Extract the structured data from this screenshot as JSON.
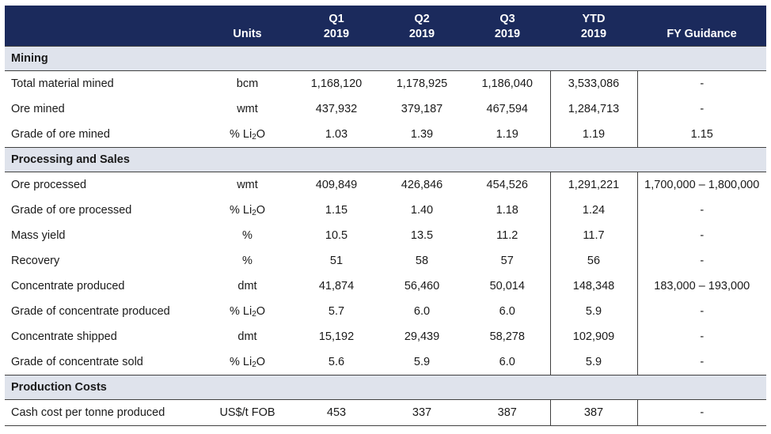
{
  "header": {
    "units": "Units",
    "q1_line1": "Q1",
    "q1_line2": "2019",
    "q2_line1": "Q2",
    "q2_line2": "2019",
    "q3_line1": "Q3",
    "q3_line2": "2019",
    "ytd_line1": "YTD",
    "ytd_line2": "2019",
    "guidance": "FY Guidance"
  },
  "sections": {
    "mining": "Mining",
    "processing": "Processing and Sales",
    "costs": "Production Costs"
  },
  "units": {
    "li2o_prefix": "% Li",
    "li2o_sub": "2",
    "li2o_suffix": "O"
  },
  "rows": {
    "total_material": {
      "label": "Total material mined",
      "units": "bcm",
      "q1": "1,168,120",
      "q2": "1,178,925",
      "q3": "1,186,040",
      "ytd": "3,533,086",
      "guidance": "-"
    },
    "ore_mined": {
      "label": "Ore mined",
      "units": "wmt",
      "q1": "437,932",
      "q2": "379,187",
      "q3": "467,594",
      "ytd": "1,284,713",
      "guidance": "-"
    },
    "grade_mined": {
      "label": "Grade of ore mined",
      "q1": "1.03",
      "q2": "1.39",
      "q3": "1.19",
      "ytd": "1.19",
      "guidance": "1.15"
    },
    "ore_processed": {
      "label": "Ore processed",
      "units": "wmt",
      "q1": "409,849",
      "q2": "426,846",
      "q3": "454,526",
      "ytd": "1,291,221",
      "guidance": "1,700,000 – 1,800,000"
    },
    "grade_processed": {
      "label": "Grade of ore processed",
      "q1": "1.15",
      "q2": "1.40",
      "q3": "1.18",
      "ytd": "1.24",
      "guidance": "-"
    },
    "mass_yield": {
      "label": "Mass yield",
      "units": "%",
      "q1": "10.5",
      "q2": "13.5",
      "q3": "11.2",
      "ytd": "11.7",
      "guidance": "-"
    },
    "recovery": {
      "label": "Recovery",
      "units": "%",
      "q1": "51",
      "q2": "58",
      "q3": "57",
      "ytd": "56",
      "guidance": "-"
    },
    "conc_produced": {
      "label": "Concentrate produced",
      "units": "dmt",
      "q1": "41,874",
      "q2": "56,460",
      "q3": "50,014",
      "ytd": "148,348",
      "guidance": "183,000 – 193,000"
    },
    "grade_conc_produced": {
      "label": "Grade of concentrate produced",
      "q1": "5.7",
      "q2": "6.0",
      "q3": "6.0",
      "ytd": "5.9",
      "guidance": "-"
    },
    "conc_shipped": {
      "label": "Concentrate shipped",
      "units": "dmt",
      "q1": "15,192",
      "q2": "29,439",
      "q3": "58,278",
      "ytd": "102,909",
      "guidance": "-"
    },
    "grade_conc_sold": {
      "label": "Grade of concentrate sold",
      "q1": "5.6",
      "q2": "5.9",
      "q3": "6.0",
      "ytd": "5.9",
      "guidance": "-"
    },
    "cash_cost": {
      "label": "Cash cost per tonne produced",
      "units": "US$/t FOB",
      "q1": "453",
      "q2": "337",
      "q3": "387",
      "ytd": "387",
      "guidance": "-"
    }
  }
}
